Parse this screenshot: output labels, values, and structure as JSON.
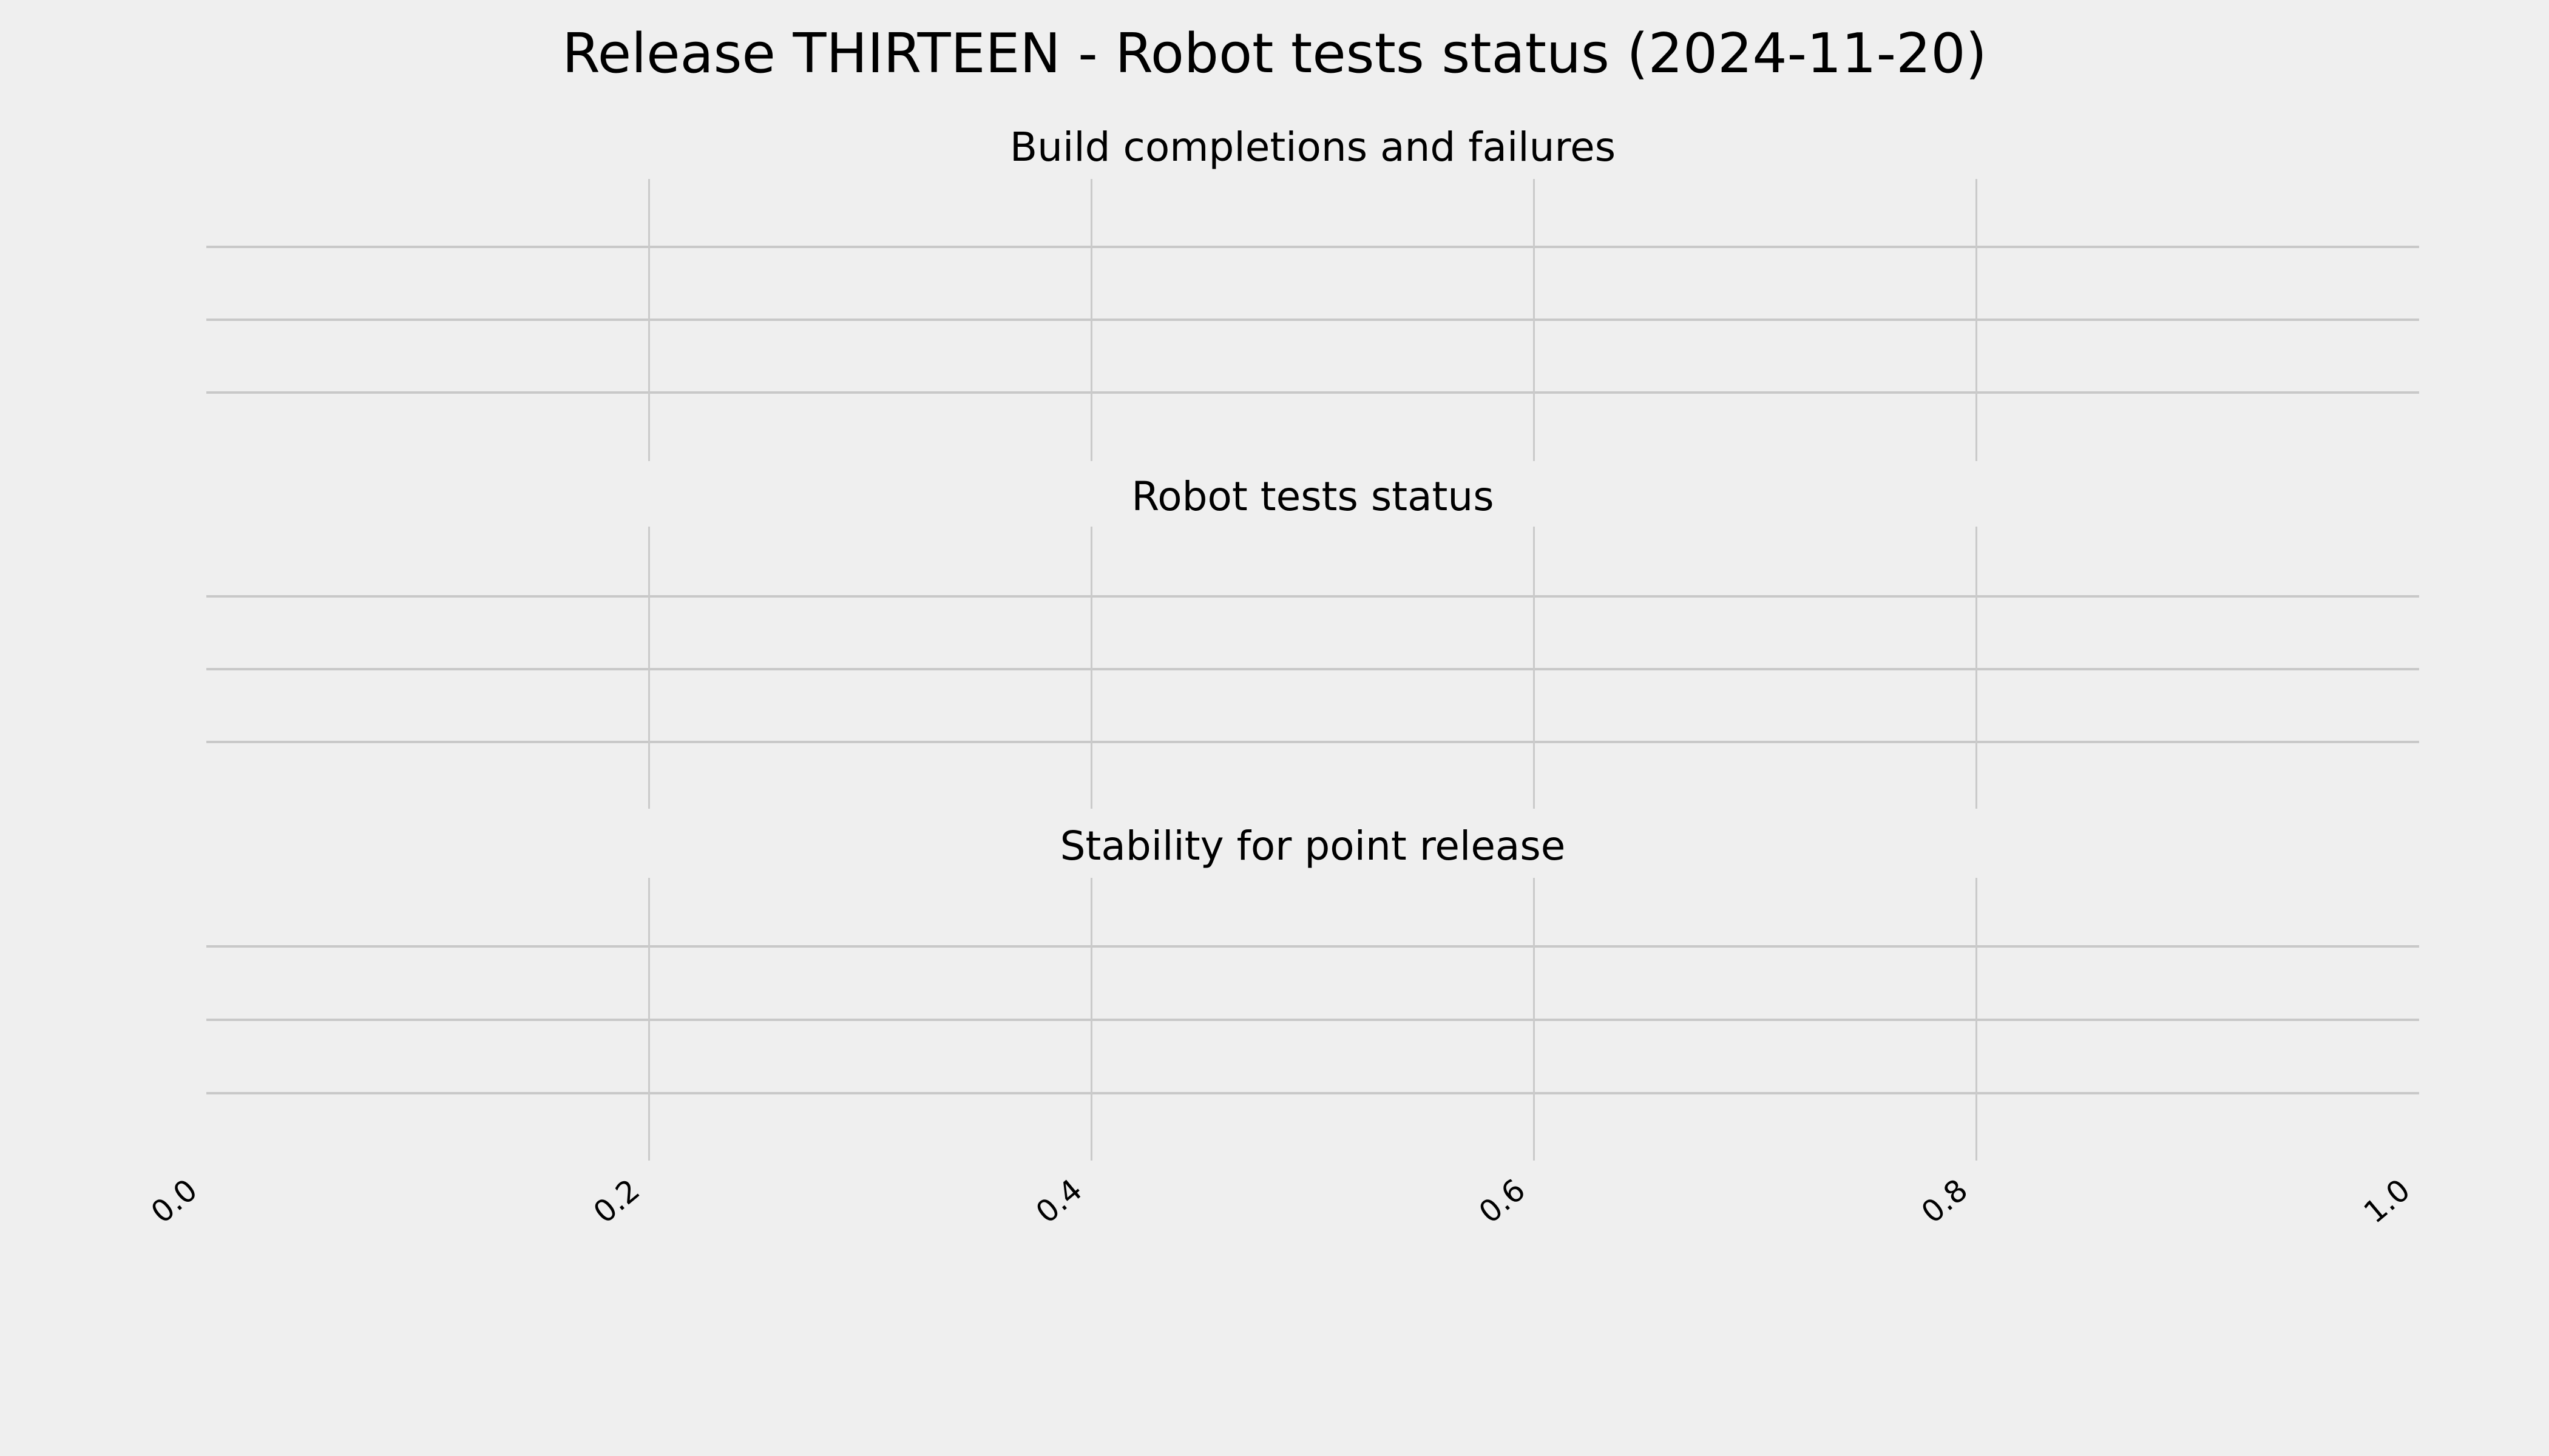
{
  "figure": {
    "title": "Release THIRTEEN - Robot tests status (2024-11-20)"
  },
  "subplots": [
    {
      "title": "Build completions and failures"
    },
    {
      "title": "Robot tests status"
    },
    {
      "title": "Stability for point release"
    }
  ],
  "x_axis": {
    "tick_labels": [
      "0.0",
      "0.2",
      "0.4",
      "0.6",
      "0.8",
      "1.0"
    ],
    "label_rotation_deg": 40
  },
  "colors": {
    "background": "#efefef",
    "grid_horizontal": "#c8c8c8",
    "grid_vertical": "#cacaca",
    "text": "#000000"
  },
  "chart_data": [
    {
      "type": "line",
      "title": "Build completions and failures",
      "xlabel": "",
      "ylabel": "",
      "xlim": [
        0.0,
        1.0
      ],
      "xticks": [
        0.0,
        0.2,
        0.4,
        0.6,
        0.8,
        1.0
      ],
      "x_tick_labels": [
        "0.0",
        "0.2",
        "0.4",
        "0.6",
        "0.8",
        "1.0"
      ],
      "grid": true,
      "legend": false,
      "series": [],
      "empty": true
    },
    {
      "type": "line",
      "title": "Robot tests status",
      "xlabel": "",
      "ylabel": "",
      "xlim": [
        0.0,
        1.0
      ],
      "xticks": [
        0.0,
        0.2,
        0.4,
        0.6,
        0.8,
        1.0
      ],
      "x_tick_labels": [
        "0.0",
        "0.2",
        "0.4",
        "0.6",
        "0.8",
        "1.0"
      ],
      "grid": true,
      "legend": false,
      "series": [],
      "empty": true
    },
    {
      "type": "line",
      "title": "Stability for point release",
      "xlabel": "",
      "ylabel": "",
      "xlim": [
        0.0,
        1.0
      ],
      "xticks": [
        0.0,
        0.2,
        0.4,
        0.6,
        0.8,
        1.0
      ],
      "x_tick_labels": [
        "0.0",
        "0.2",
        "0.4",
        "0.6",
        "0.8",
        "1.0"
      ],
      "grid": true,
      "legend": false,
      "series": [],
      "empty": true
    }
  ]
}
